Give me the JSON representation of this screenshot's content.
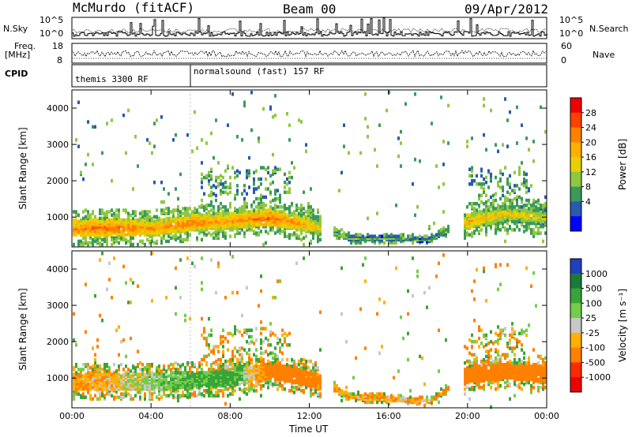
{
  "header": {
    "radar": "McMurdo (fitACF)",
    "beam": "Beam 00",
    "date": "09/Apr/2012"
  },
  "noise_panel": {
    "left_label": "N.Sky",
    "right_label": "N.Search",
    "left_ticks": [
      "10^5",
      "10^0"
    ],
    "right_ticks": [
      "10^5",
      "10^0"
    ]
  },
  "freq_panel": {
    "label_line1": "Freq.",
    "label_line2": "[MHz]",
    "left_ticks": [
      "18",
      "8"
    ],
    "right_label": "Nave",
    "right_ticks": [
      "60",
      "0"
    ]
  },
  "cpid_panel": {
    "label": "CPID",
    "segments": [
      "themis 3300 RF",
      "normalsound (fast) 157 RF"
    ]
  },
  "x_axis": {
    "label": "Time UT",
    "ticks": [
      "00:00",
      "04:00",
      "08:00",
      "12:00",
      "16:00",
      "20:00",
      "00:00"
    ]
  },
  "power_colorbar": {
    "label": "Power [dB]",
    "ticks": [
      "28",
      "24",
      "20",
      "16",
      "12",
      "8",
      "4"
    ],
    "colors": [
      "#ee0000",
      "#ff4000",
      "#ff8000",
      "#ffb000",
      "#e8d000",
      "#8fc840",
      "#3a9a5a",
      "#2a5ab0",
      "#0000ff"
    ]
  },
  "velocity_colorbar": {
    "label": "Velocity [m s⁻¹]",
    "ticks": [
      "1000",
      "500",
      "100",
      "25",
      "-25",
      "-100",
      "-500",
      "-1000"
    ],
    "colors": [
      "#1f40c0",
      "#1a7a3a",
      "#37a537",
      "#74cc48",
      "#c8c8c8",
      "#ffb000",
      "#ff8000",
      "#ff2a00",
      "#ee0000"
    ]
  },
  "chart_data": [
    {
      "type": "heatmap",
      "title": "Beam 00",
      "xlabel": "Time UT",
      "ylabel": "Slant Range [km]",
      "xlim": [
        0,
        24
      ],
      "ylim": [
        180,
        4500
      ],
      "yticks": [
        1000,
        2000,
        3000,
        4000
      ],
      "colorbar_label": "Power [dB]",
      "colorbar_range": [
        0,
        32
      ],
      "main_band": [
        {
          "t": 0,
          "range": 700,
          "power": 24
        },
        {
          "t": 2,
          "range": 720,
          "power": 26
        },
        {
          "t": 4,
          "range": 700,
          "power": 22
        },
        {
          "t": 6,
          "range": 850,
          "power": 24
        },
        {
          "t": 8,
          "range": 900,
          "power": 22
        },
        {
          "t": 10,
          "range": 1000,
          "power": 26
        },
        {
          "t": 12,
          "range": 800,
          "power": 20
        },
        {
          "t": 14,
          "range": 420,
          "power": 14
        },
        {
          "t": 16,
          "range": 420,
          "power": 12
        },
        {
          "t": 18,
          "range": 380,
          "power": 10
        },
        {
          "t": 20,
          "range": 900,
          "power": 20
        },
        {
          "t": 22,
          "range": 1100,
          "power": 18
        },
        {
          "t": 24,
          "range": 1000,
          "power": 16
        }
      ]
    },
    {
      "type": "heatmap",
      "xlabel": "Time UT",
      "ylabel": "Slant Range [km]",
      "xlim": [
        0,
        24
      ],
      "ylim": [
        180,
        4500
      ],
      "yticks": [
        1000,
        2000,
        3000,
        4000
      ],
      "colorbar_label": "Velocity [m s⁻¹]",
      "colorbar_range": [
        -1000,
        1000
      ],
      "main_band": [
        {
          "t": 0,
          "range": 900,
          "velocity": -100
        },
        {
          "t": 2,
          "range": 900,
          "velocity": -50
        },
        {
          "t": 4,
          "range": 900,
          "velocity": 50
        },
        {
          "t": 6,
          "range": 950,
          "velocity": 100
        },
        {
          "t": 8,
          "range": 1000,
          "velocity": 150
        },
        {
          "t": 10,
          "range": 1200,
          "velocity": -200
        },
        {
          "t": 12,
          "range": 1000,
          "velocity": -150
        },
        {
          "t": 14,
          "range": 500,
          "velocity": -80
        },
        {
          "t": 16,
          "range": 420,
          "velocity": -60
        },
        {
          "t": 18,
          "range": 350,
          "velocity": -80
        },
        {
          "t": 20,
          "range": 1100,
          "velocity": -300
        },
        {
          "t": 22,
          "range": 1200,
          "velocity": -350
        },
        {
          "t": 24,
          "range": 1100,
          "velocity": -300
        }
      ]
    }
  ]
}
